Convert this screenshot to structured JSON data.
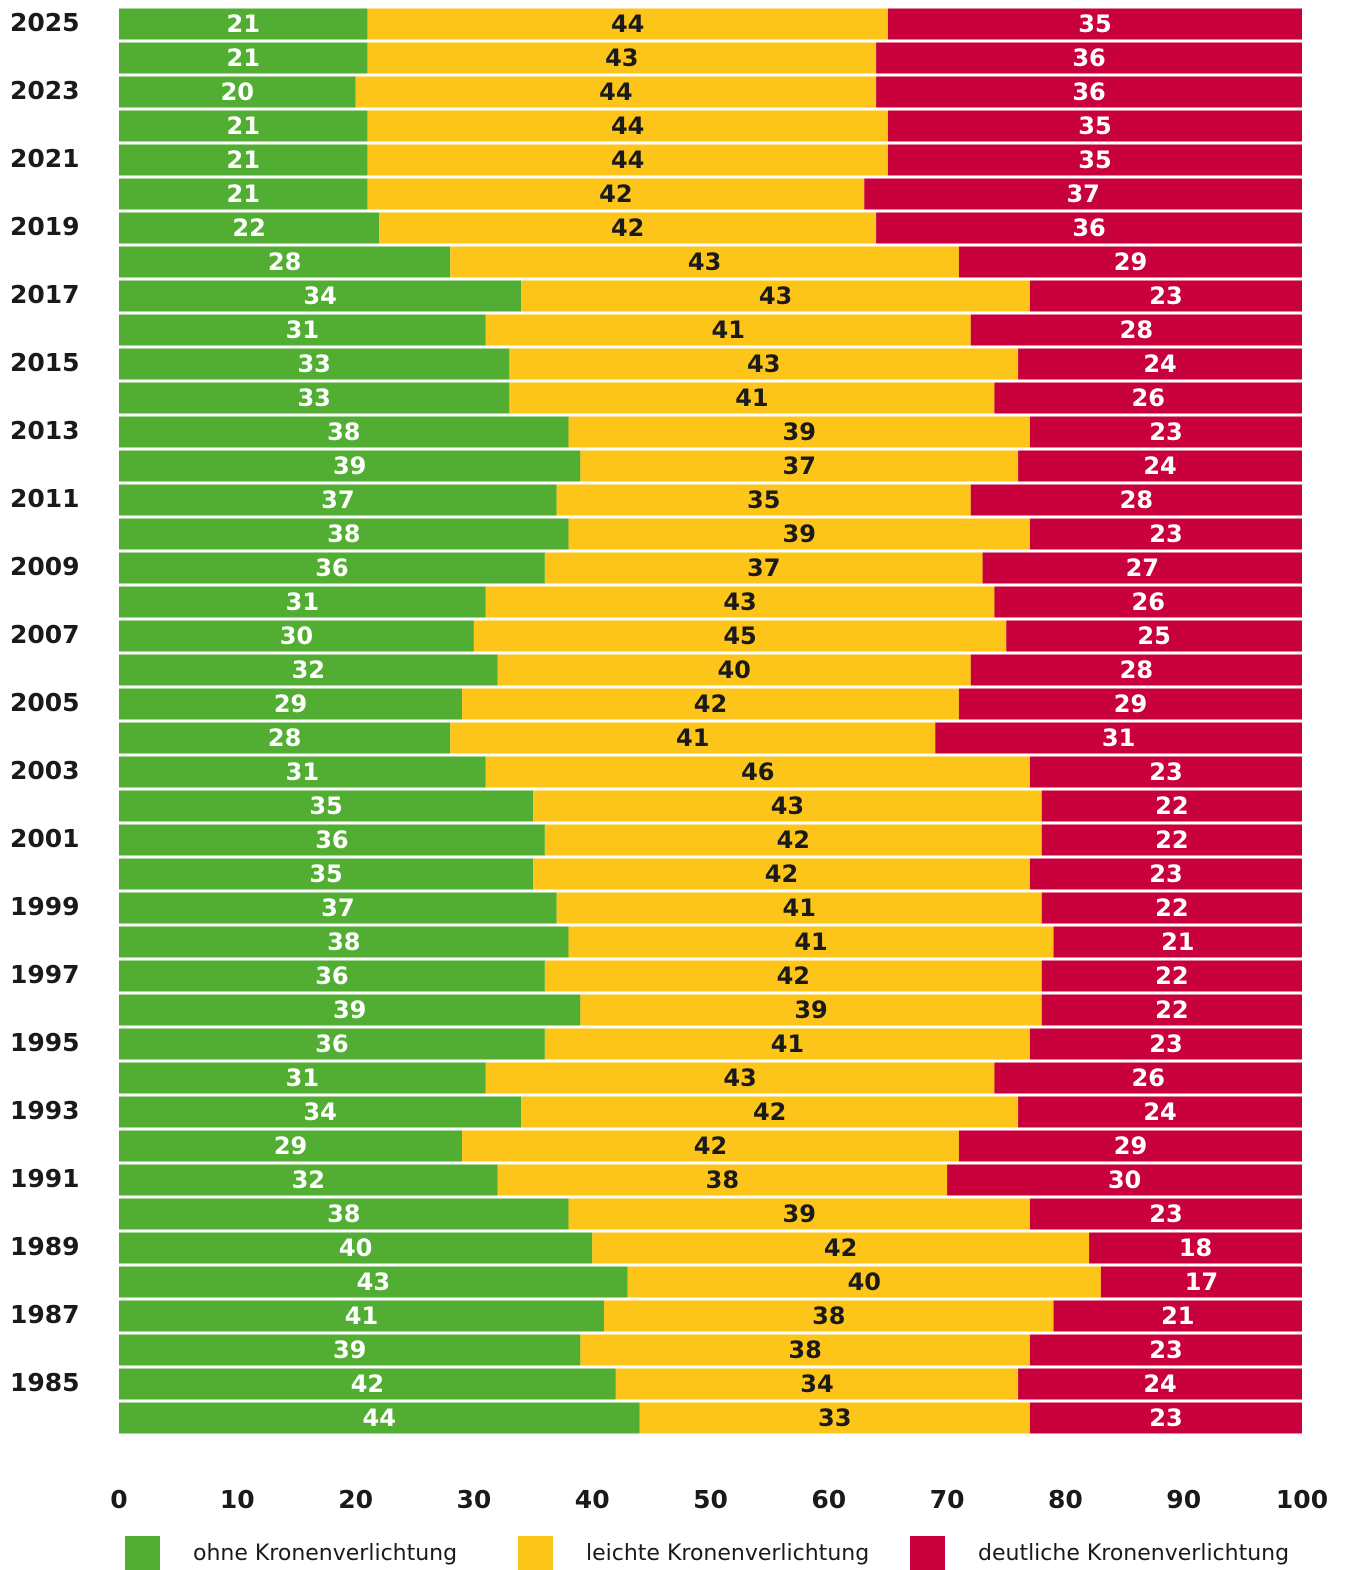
{
  "chart_data": {
    "type": "stacked_barh",
    "categories": [
      "2025",
      null,
      "2023",
      null,
      "2021",
      null,
      "2019",
      null,
      "2017",
      null,
      "2015",
      null,
      "2013",
      null,
      "2011",
      null,
      "2009",
      null,
      "2007",
      null,
      "2005",
      null,
      "2003",
      null,
      "2001",
      null,
      "1999",
      null,
      "1997",
      null,
      "1995",
      null,
      "1993",
      null,
      "1991",
      null,
      "1989",
      null,
      "1987",
      null,
      "1985",
      null
    ],
    "series": [
      {
        "name": "ohne Kronenverlichtung",
        "color": "#52ae32",
        "values": [
          21,
          21,
          20,
          21,
          21,
          21,
          22,
          28,
          34,
          31,
          33,
          33,
          38,
          39,
          37,
          38,
          36,
          31,
          30,
          32,
          29,
          28,
          31,
          35,
          36,
          35,
          37,
          38,
          36,
          39,
          36,
          31,
          34,
          29,
          32,
          38,
          40,
          43,
          41,
          39,
          42,
          44
        ]
      },
      {
        "name": "leichte Kronenverlichtung",
        "color": "#fdc41a",
        "values": [
          44,
          43,
          44,
          44,
          44,
          42,
          42,
          43,
          43,
          41,
          43,
          41,
          39,
          37,
          35,
          39,
          37,
          43,
          45,
          40,
          42,
          41,
          46,
          43,
          42,
          42,
          41,
          41,
          42,
          39,
          41,
          43,
          42,
          42,
          38,
          39,
          42,
          40,
          38,
          38,
          34,
          33
        ]
      },
      {
        "name": "deutliche Kronenverlichtung",
        "color": "#c8003c",
        "values": [
          35,
          36,
          36,
          35,
          35,
          37,
          36,
          29,
          23,
          28,
          24,
          26,
          23,
          24,
          28,
          23,
          27,
          26,
          25,
          28,
          29,
          31,
          23,
          22,
          22,
          23,
          22,
          21,
          22,
          22,
          23,
          26,
          24,
          29,
          30,
          23,
          18,
          17,
          21,
          23,
          24,
          23
        ]
      }
    ],
    "xlim": [
      0,
      100
    ],
    "xticks": [
      0,
      10,
      20,
      30,
      40,
      50,
      60,
      70,
      80,
      90,
      100
    ],
    "grid": false
  }
}
